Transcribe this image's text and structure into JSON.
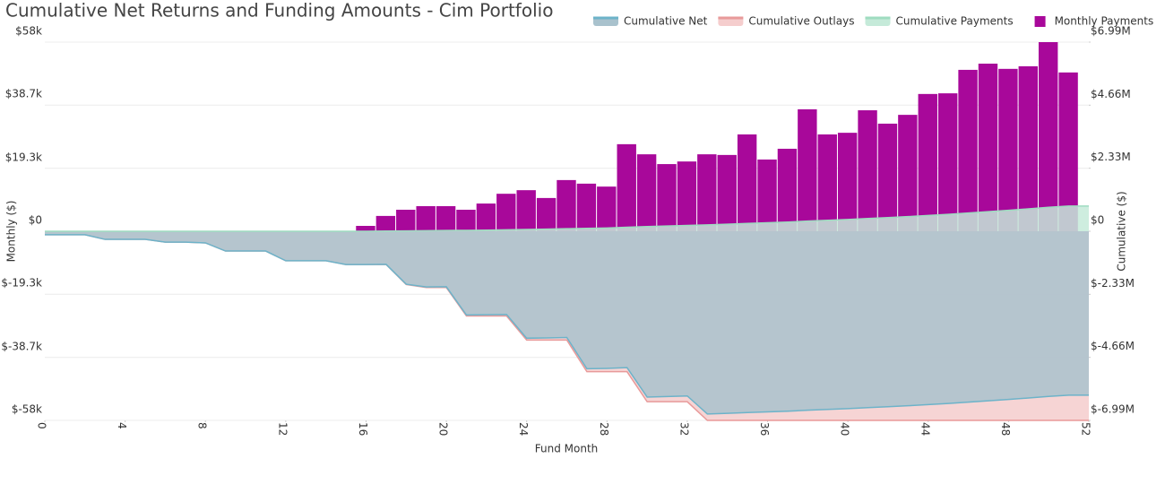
{
  "chart_data": {
    "type": "bar",
    "title": "Cumulative Net Returns and Funding Amounts - Cim Portfolio",
    "x_label": "Fund Month",
    "y_label": "Monthly ($)",
    "y2_label": "Cumulative ($)",
    "x": [
      0,
      1,
      2,
      3,
      4,
      5,
      6,
      7,
      8,
      9,
      10,
      11,
      12,
      13,
      14,
      15,
      16,
      17,
      18,
      19,
      20,
      21,
      22,
      23,
      24,
      25,
      26,
      27,
      28,
      29,
      30,
      31,
      32,
      33,
      34,
      35,
      36,
      37,
      38,
      39,
      40,
      41,
      42,
      43,
      44,
      45,
      46,
      47,
      48,
      49,
      50,
      51,
      52
    ],
    "xlim": [
      0,
      52
    ],
    "xticks": [
      0,
      4,
      8,
      12,
      16,
      20,
      24,
      28,
      32,
      36,
      40,
      44,
      48,
      52
    ],
    "ylim": [
      -58000,
      58000
    ],
    "yticks": [
      {
        "value": -58000,
        "label": "$-58k"
      },
      {
        "value": -38700,
        "label": "$-38.7k"
      },
      {
        "value": -19300,
        "label": "$-19.3k"
      },
      {
        "value": 0,
        "label": "$0"
      },
      {
        "value": 19300,
        "label": "$19.3k"
      },
      {
        "value": 38700,
        "label": "$38.7k"
      },
      {
        "value": 58000,
        "label": "$58k"
      }
    ],
    "y2lim": [
      -6990000,
      6990000
    ],
    "y2ticks": [
      {
        "value": -6990000,
        "label": "$-6.99M"
      },
      {
        "value": -4660000,
        "label": "$-4.66M"
      },
      {
        "value": -2330000,
        "label": "$-2.33M"
      },
      {
        "value": 0,
        "label": "$0"
      },
      {
        "value": 2330000,
        "label": "$2.33M"
      },
      {
        "value": 4660000,
        "label": "$4.66M"
      },
      {
        "value": 6990000,
        "label": "$6.99M"
      }
    ],
    "grid": true,
    "legend": "top-right",
    "series": [
      {
        "name": "Cumulative Net",
        "type": "area",
        "axis": "y2",
        "color": "#6db3c9",
        "fill": "#a9c2cd",
        "values": [
          -130000,
          -130000,
          -130000,
          -300000,
          -300000,
          -300000,
          -400000,
          -400000,
          -430000,
          -730000,
          -730000,
          -730000,
          -1090000,
          -1090000,
          -1090000,
          -1230000,
          -1228350,
          -1223650,
          -1957050,
          -2059350,
          -2051650,
          -3095050,
          -3086550,
          -3075050,
          -3952450,
          -3942250,
          -3926550,
          -5081950,
          -5068250,
          -5041550,
          -6127950,
          -6107350,
          -6085950,
          -6752350,
          -6728950,
          -6699250,
          -6677250,
          -6651950,
          -6614550,
          -6584850,
          -6554650,
          -6517550,
          -6484550,
          -6448850,
          -6406750,
          -6364450,
          -6314950,
          -6263550,
          -6213750,
          -6163150,
          -6105150,
          -6056450,
          -6056450
        ]
      },
      {
        "name": "Cumulative Outlays",
        "type": "area",
        "axis": "y2",
        "color": "#e89a9a",
        "fill": "#f5cdcd",
        "values": [
          -130000,
          -130000,
          -130000,
          -300000,
          -300000,
          -300000,
          -400000,
          -400000,
          -430000,
          -730000,
          -730000,
          -730000,
          -1090000,
          -1090000,
          -1090000,
          -1230000,
          -1230000,
          -1230000,
          -1970000,
          -2080000,
          -2080000,
          -3130000,
          -3130000,
          -3130000,
          -4020000,
          -4020000,
          -4020000,
          -5190000,
          -5190000,
          -5190000,
          -6300000,
          -6300000,
          -6300000,
          -6990000,
          -6990000,
          -6990000,
          -6990000,
          -6990000,
          -6990000,
          -6990000,
          -6990000,
          -6990000,
          -6990000,
          -6990000,
          -6990000,
          -6990000,
          -6990000,
          -6990000,
          -6990000,
          -6990000,
          -6990000,
          -6990000,
          -6990000
        ]
      },
      {
        "name": "Cumulative Payments",
        "type": "area",
        "axis": "y2",
        "color": "#9fdcc0",
        "fill": "#c5ead9",
        "values": [
          0,
          0,
          0,
          0,
          0,
          0,
          0,
          0,
          0,
          0,
          0,
          0,
          0,
          0,
          0,
          0,
          1650,
          6350,
          12950,
          20650,
          28350,
          34950,
          43450,
          54950,
          67550,
          77750,
          93450,
          108050,
          121750,
          148450,
          172050,
          192650,
          214050,
          237650,
          261050,
          290750,
          312750,
          338050,
          375450,
          405150,
          435350,
          472450,
          505450,
          541150,
          583250,
          625550,
          675050,
          726450,
          776250,
          826850,
          884850,
          933550,
          933550
        ]
      },
      {
        "name": "Monthly Payments",
        "type": "bar",
        "axis": "y",
        "color": "#a8089a",
        "values": [
          null,
          null,
          null,
          null,
          null,
          null,
          null,
          null,
          null,
          null,
          null,
          null,
          null,
          null,
          null,
          null,
          1650,
          4700,
          6600,
          7700,
          7700,
          6600,
          8500,
          11500,
          12600,
          10200,
          15700,
          14600,
          13700,
          26700,
          23600,
          20600,
          21400,
          23600,
          23400,
          29700,
          22000,
          25300,
          37400,
          29700,
          30200,
          37100,
          33000,
          35700,
          42100,
          42300,
          49500,
          51400,
          49800,
          50600,
          58000,
          48700,
          null
        ]
      }
    ]
  }
}
